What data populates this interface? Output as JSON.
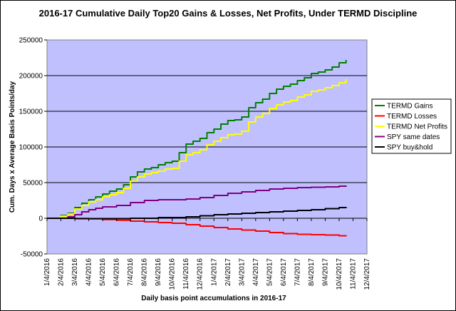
{
  "chart_data": {
    "type": "line",
    "title": "2016-17 Cumulative Daily Top20 Gains & Losses, Net Profits, Under TERMD Discipline",
    "xlabel": "Daily basis point accumulations in 2016-17",
    "ylabel": "Cum. Days x Average Basis Points/day",
    "ylim": [
      -50000,
      250000
    ],
    "yticks": [
      "-50000",
      "0",
      "50000",
      "100000",
      "150000",
      "200000",
      "250000"
    ],
    "yticks_values": [
      -50000,
      0,
      50000,
      100000,
      150000,
      200000,
      250000
    ],
    "xticks": [
      "1/4/2016",
      "2/4/2016",
      "3/4/2016",
      "4/4/2016",
      "5/4/2016",
      "6/4/2016",
      "7/4/2016",
      "8/4/2016",
      "9/4/2016",
      "10/4/2016",
      "11/4/2016",
      "12/4/2016",
      "1/4/2017",
      "2/4/2017",
      "3/4/2017",
      "4/4/2017",
      "5/4/2017",
      "6/4/2017",
      "7/4/2017",
      "8/4/2017",
      "9/4/2017",
      "10/4/2017",
      "11/4/2017",
      "12/4/2017"
    ],
    "x_range_months": [
      0,
      23
    ],
    "grid": "horizontal",
    "legend_position": "right",
    "plot_background": "#c0c0ff",
    "series": [
      {
        "name": "TERMD Gains",
        "color": "#008000",
        "x": [
          0,
          0.5,
          1,
          1.5,
          2,
          2.5,
          3,
          3.5,
          4,
          4.5,
          5,
          5.5,
          6,
          6.5,
          7,
          7.5,
          8,
          8.5,
          9,
          9.5,
          10,
          10.5,
          11,
          11.5,
          12,
          12.5,
          13,
          13.5,
          14,
          14.5,
          15,
          15.5,
          16,
          16.5,
          17,
          17.5,
          18,
          18.5,
          19,
          19.5,
          20,
          20.5,
          21,
          21.5
        ],
        "values": [
          0,
          0,
          4000,
          7000,
          15000,
          21000,
          26000,
          30000,
          34000,
          38000,
          41000,
          47000,
          58000,
          65000,
          69000,
          71000,
          75000,
          78000,
          80000,
          92000,
          104000,
          108000,
          112000,
          120000,
          125000,
          132000,
          137000,
          138000,
          142000,
          155000,
          162000,
          167000,
          175000,
          181000,
          185000,
          188000,
          193000,
          197000,
          203000,
          205000,
          208000,
          212000,
          218000,
          222000
        ]
      },
      {
        "name": "TERMD Losses",
        "color": "#ff0000",
        "x": [
          0,
          1,
          2,
          3,
          4,
          5,
          6,
          7,
          8,
          9,
          10,
          11,
          12,
          13,
          14,
          15,
          16,
          17,
          18,
          19,
          20,
          21,
          21.5
        ],
        "values": [
          0,
          0,
          -200,
          -800,
          -1800,
          -2800,
          -4000,
          -5000,
          -6000,
          -7000,
          -9000,
          -11000,
          -13000,
          -15000,
          -16500,
          -18000,
          -20000,
          -21500,
          -22500,
          -23000,
          -23500,
          -24500,
          -25500
        ]
      },
      {
        "name": "TERMD Net Profits",
        "color": "#ffff00",
        "x": [
          0,
          0.5,
          1,
          1.5,
          2,
          2.5,
          3,
          3.5,
          4,
          4.5,
          5,
          5.5,
          6,
          6.5,
          7,
          7.5,
          8,
          8.5,
          9,
          9.5,
          10,
          10.5,
          11,
          11.5,
          12,
          12.5,
          13,
          13.5,
          14,
          14.5,
          15,
          15.5,
          16,
          16.5,
          17,
          17.5,
          18,
          18.5,
          19,
          19.5,
          20,
          20.5,
          21,
          21.5
        ],
        "values": [
          0,
          0,
          3000,
          6000,
          13000,
          18000,
          23000,
          26000,
          30000,
          33000,
          36000,
          42000,
          52000,
          58000,
          62000,
          64000,
          66000,
          69000,
          70000,
          80000,
          89000,
          92000,
          96000,
          103000,
          108000,
          113000,
          117000,
          118000,
          122000,
          135000,
          142000,
          147000,
          154000,
          159000,
          163000,
          165000,
          170000,
          173000,
          178000,
          180000,
          183000,
          186000,
          190000,
          195000
        ]
      },
      {
        "name": "SPY same dates",
        "color": "#800080",
        "x": [
          0,
          1,
          1.5,
          2,
          2.5,
          3,
          3.5,
          4,
          5,
          6,
          7,
          8,
          9,
          10,
          11,
          12,
          13,
          14,
          15,
          16,
          17,
          18,
          19,
          20,
          21,
          21.5
        ],
        "values": [
          0,
          0,
          2000,
          5000,
          9000,
          12000,
          14000,
          16000,
          18000,
          22000,
          25000,
          26000,
          26000,
          27000,
          29000,
          32000,
          35000,
          37000,
          39000,
          41000,
          42000,
          43000,
          43500,
          44000,
          45000,
          46000
        ]
      },
      {
        "name": "SPY buy&hold",
        "color": "#000000",
        "x": [
          0,
          2,
          4,
          6,
          8,
          10,
          11,
          12,
          13,
          14,
          15,
          16,
          17,
          18,
          19,
          20,
          21,
          21.5
        ],
        "values": [
          0,
          -500,
          -500,
          0,
          1000,
          2000,
          3500,
          5000,
          6000,
          7000,
          8000,
          9000,
          10000,
          11000,
          12000,
          13500,
          15000,
          16000
        ]
      }
    ]
  }
}
